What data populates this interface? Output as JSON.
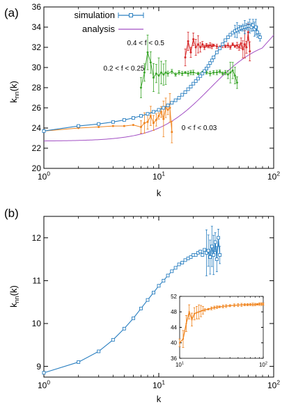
{
  "colors": {
    "blue": "#2a7fc0",
    "purple": "#a24fc4",
    "red": "#d62728",
    "green": "#3aa52a",
    "orange": "#f0841e"
  },
  "chart_data": [
    {
      "panel_label": "(a)",
      "type": "line",
      "xlabel": "k",
      "ylabel": "k_nn(k)",
      "xscale": "log",
      "xlim": [
        1,
        100
      ],
      "ylim": [
        20,
        36
      ],
      "xticks": [
        1,
        10,
        100
      ],
      "xtick_labels": [
        "10^0",
        "10^1",
        "10^2"
      ],
      "yticks": [
        20,
        22,
        24,
        26,
        28,
        30,
        32,
        34,
        36
      ],
      "legend_position": "top-center",
      "series": [
        {
          "name": "simulation",
          "color_key": "blue",
          "marker": "square",
          "x": [
            1,
            2,
            3,
            4,
            5,
            6,
            7,
            8,
            9,
            10,
            11,
            12,
            13,
            14,
            15,
            16,
            17,
            18,
            19,
            20,
            21,
            22,
            23,
            24,
            25,
            26,
            27,
            28,
            29,
            30,
            32,
            34,
            36,
            38,
            40,
            42,
            44,
            46,
            48,
            50,
            52,
            54,
            56,
            58,
            60,
            62,
            64,
            66,
            68,
            70,
            72,
            76
          ],
          "y": [
            23.7,
            24.2,
            24.4,
            24.6,
            24.8,
            25.0,
            25.2,
            25.4,
            25.6,
            25.8,
            26.0,
            26.25,
            26.5,
            26.75,
            27.0,
            27.3,
            27.55,
            27.85,
            28.1,
            28.4,
            28.65,
            28.9,
            29.15,
            29.4,
            29.65,
            29.9,
            30.15,
            30.45,
            30.7,
            31.0,
            31.5,
            31.9,
            32.3,
            32.7,
            33.0,
            33.25,
            33.45,
            33.6,
            33.7,
            33.8,
            33.9,
            33.95,
            34.0,
            34.05,
            34.1,
            34.1,
            34.0,
            34.2,
            33.8,
            34.0,
            33.5,
            33.0
          ]
        },
        {
          "name": "analysis",
          "color_key": "purple",
          "x": [],
          "y": []
        },
        {
          "color_key": "red",
          "x": [
            17,
            18,
            19,
            20,
            21,
            22,
            23,
            24,
            25,
            26,
            27,
            28,
            29,
            30,
            32,
            34,
            36,
            38,
            40,
            42,
            44,
            46,
            48,
            50,
            52,
            54,
            56,
            58,
            60,
            62
          ],
          "y": [
            31.0,
            32.6,
            31.5,
            32.8,
            32.0,
            32.3,
            32.0,
            32.3,
            32.0,
            32.2,
            32.1,
            32.2,
            32.1,
            32.2,
            32.1,
            32.0,
            32.2,
            32.1,
            32.2,
            32.0,
            32.3,
            32.1,
            32.2,
            32.0,
            32.4,
            31.8,
            32.3,
            32.0,
            33.5,
            31.6
          ]
        },
        {
          "color_key": "green",
          "x": [
            7,
            7.5,
            8,
            8.5,
            9,
            9.5,
            10,
            10.5,
            11,
            11.5,
            12,
            13,
            14,
            15,
            16,
            17,
            18,
            19,
            20,
            22,
            24,
            26,
            28,
            30,
            32,
            34,
            36,
            38,
            40,
            42,
            44,
            46,
            48
          ],
          "y": [
            28.0,
            29.5,
            31.5,
            30.5,
            29.0,
            29.4,
            29.2,
            29.5,
            29.3,
            29.5,
            29.4,
            29.6,
            29.3,
            29.5,
            29.4,
            29.5,
            29.4,
            29.5,
            29.5,
            29.4,
            29.5,
            29.5,
            29.4,
            29.5,
            29.5,
            29.6,
            29.4,
            29.5,
            29.3,
            29.5,
            29.7,
            29.2,
            28.5
          ]
        },
        {
          "color_key": "orange",
          "x": [
            1,
            2,
            3,
            4,
            5,
            6,
            7,
            7.5,
            8,
            8.5,
            9,
            9.5,
            10,
            10.5,
            11,
            11.5,
            12,
            12.5,
            13
          ],
          "y": [
            23.7,
            24.0,
            24.1,
            24.2,
            24.2,
            24.3,
            24.1,
            24.5,
            24.6,
            25.2,
            24.5,
            24.8,
            25.2,
            25.6,
            24.9,
            26.0,
            25.8,
            26.0,
            23.6
          ]
        }
      ],
      "annotations": [
        {
          "text": "0.4 < f < 0.5",
          "x": 5.3,
          "y": 32.2
        },
        {
          "text": "0.2 < f < 0.25",
          "x": 3.3,
          "y": 29.7
        },
        {
          "text": "0 < f < 0.03",
          "x": 15.8,
          "y": 23.8
        }
      ]
    },
    {
      "panel_label": "(b)",
      "type": "line",
      "xlabel": "k",
      "ylabel": "k_nn(k)",
      "xscale": "log",
      "xlim": [
        1,
        100
      ],
      "ylim": [
        8.75,
        12.5
      ],
      "xticks": [
        1,
        10,
        100
      ],
      "xtick_labels": [
        "10^0",
        "10^1",
        "10^2"
      ],
      "yticks": [
        9,
        10,
        11,
        12
      ],
      "series": [
        {
          "color_key": "blue",
          "marker": "square",
          "x": [
            1,
            2,
            3,
            4,
            5,
            6,
            7,
            8,
            9,
            10,
            11,
            12,
            13,
            14,
            15,
            16,
            17,
            18,
            19,
            20,
            21,
            22,
            23,
            24,
            25,
            26,
            27,
            28,
            29,
            30,
            31,
            32,
            33,
            34
          ],
          "y": [
            8.85,
            9.1,
            9.35,
            9.62,
            9.88,
            10.12,
            10.35,
            10.55,
            10.72,
            10.88,
            11.0,
            11.12,
            11.22,
            11.3,
            11.38,
            11.42,
            11.48,
            11.52,
            11.55,
            11.6,
            11.6,
            11.65,
            11.68,
            11.6,
            11.72,
            11.65,
            11.7,
            11.55,
            11.8,
            11.6,
            11.9,
            11.5,
            12.0,
            11.6
          ]
        }
      ]
    },
    {
      "panel_label": "(b) inset",
      "type": "line",
      "xscale": "log",
      "xlim": [
        10,
        100
      ],
      "ylim": [
        36,
        52
      ],
      "xticks": [
        10,
        100
      ],
      "xtick_labels": [
        "10^1",
        "10^2"
      ],
      "yticks": [
        36,
        40,
        44,
        48,
        52
      ],
      "series": [
        {
          "color_key": "orange",
          "x": [
            10,
            11,
            12,
            13,
            14,
            15,
            16,
            17,
            18,
            19,
            20,
            22,
            24,
            26,
            28,
            30,
            33,
            36,
            40,
            45,
            50,
            55,
            60,
            65,
            70,
            75,
            80,
            85,
            90,
            95,
            100
          ],
          "y": [
            40,
            41,
            45,
            48,
            46,
            47.5,
            47.8,
            48,
            48.2,
            48.4,
            48.5,
            48.7,
            48.9,
            49.1,
            49.2,
            49.3,
            49.4,
            49.5,
            49.6,
            49.7,
            49.75,
            49.8,
            49.85,
            49.85,
            49.9,
            49.9,
            49.9,
            49.95,
            50,
            50,
            50
          ]
        }
      ]
    }
  ]
}
